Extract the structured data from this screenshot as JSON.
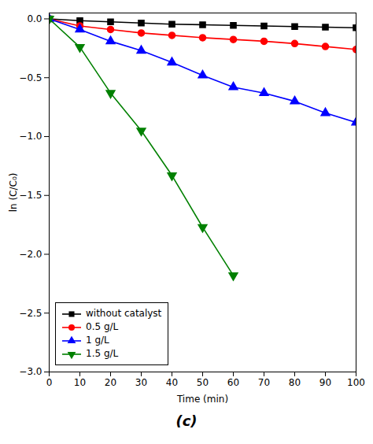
{
  "chart_data": {
    "type": "line",
    "title": "(c)",
    "xlabel": "Time (min)",
    "ylabel": "ln (C/C₀)",
    "x": [
      0,
      10,
      20,
      30,
      40,
      50,
      60,
      70,
      80,
      90,
      100
    ],
    "xlim": [
      0,
      100
    ],
    "ylim": [
      -3.0,
      0.05
    ],
    "xticks": [
      0,
      10,
      20,
      30,
      40,
      50,
      60,
      70,
      80,
      90,
      100
    ],
    "yticks": [
      {
        "value": 0.0,
        "label": "0.0"
      },
      {
        "value": -0.5,
        "label": "−0.5"
      },
      {
        "value": -1.0,
        "label": "−1.0"
      },
      {
        "value": -1.5,
        "label": "−1.5"
      },
      {
        "value": -2.0,
        "label": "−2.0"
      },
      {
        "value": -2.5,
        "label": "−2.5"
      },
      {
        "value": -3.0,
        "label": "−3.0"
      }
    ],
    "series": [
      {
        "name": "without catalyst",
        "color": "#000000",
        "marker": "square",
        "values": [
          0.0,
          -0.015,
          -0.025,
          -0.035,
          -0.045,
          -0.05,
          -0.055,
          -0.06,
          -0.065,
          -0.07,
          -0.075
        ]
      },
      {
        "name": "0.5 g/L",
        "color": "#ff0000",
        "marker": "circle",
        "values": [
          0.0,
          -0.06,
          -0.09,
          -0.12,
          -0.14,
          -0.16,
          -0.175,
          -0.19,
          -0.21,
          -0.235,
          -0.26
        ]
      },
      {
        "name": "1 g/L",
        "color": "#0000ff",
        "marker": "triangle-up",
        "values": [
          0.0,
          -0.09,
          -0.19,
          -0.27,
          -0.37,
          -0.48,
          -0.58,
          -0.63,
          -0.7,
          -0.8,
          -0.88
        ]
      },
      {
        "name": "1.5 g/L",
        "color": "#008000",
        "marker": "triangle-down",
        "values": [
          0.0,
          -0.24,
          -0.63,
          -0.95,
          -1.33,
          -1.77,
          -2.18,
          null,
          null,
          null,
          null
        ]
      }
    ],
    "legend": "lower left",
    "grid": false
  }
}
